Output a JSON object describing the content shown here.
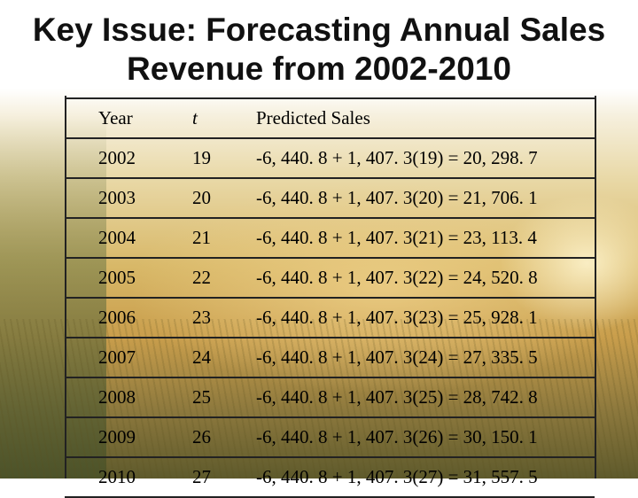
{
  "title_line1": "Key Issue: Forecasting Annual Sales",
  "title_line2": "Revenue from 2002-2010",
  "table": {
    "headers": [
      "Year",
      "t",
      "Predicted Sales"
    ],
    "rows": [
      [
        "2002",
        "19",
        "-6, 440. 8 + 1, 407. 3(19) = 20, 298. 7"
      ],
      [
        "2003",
        "20",
        "-6, 440. 8 + 1, 407. 3(20) = 21, 706. 1"
      ],
      [
        "2004",
        "21",
        "-6, 440. 8 + 1, 407. 3(21) = 23, 113. 4"
      ],
      [
        "2005",
        "22",
        "-6, 440. 8 + 1, 407. 3(22) = 24, 520. 8"
      ],
      [
        "2006",
        "23",
        "-6, 440. 8 + 1, 407. 3(23) = 25, 928. 1"
      ],
      [
        "2007",
        "24",
        "-6, 440. 8 + 1, 407. 3(24) = 27, 335. 5"
      ],
      [
        "2008",
        "25",
        "-6, 440. 8 + 1, 407. 3(25) = 28, 742. 8"
      ],
      [
        "2009",
        "26",
        "-6, 440. 8 + 1, 407. 3(26) = 30, 150. 1"
      ],
      [
        "2010",
        "27",
        "-6, 440. 8 + 1, 407. 3(27) = 31, 557. 5"
      ]
    ]
  }
}
